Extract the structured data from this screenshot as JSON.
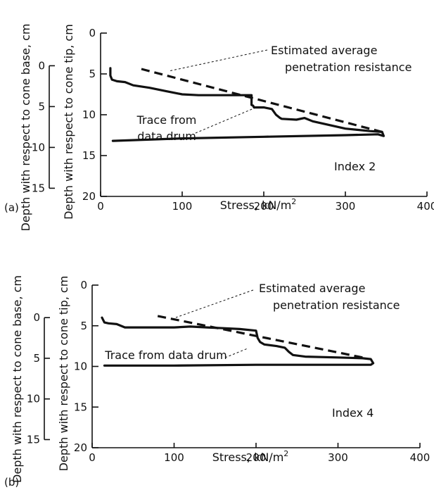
{
  "chart_data": [
    {
      "type": "line",
      "panel_label": "(a)",
      "xlabel": "Stress, kN/m",
      "xlabel_sup": "2",
      "ylabel": "Depth with respect to cone tip, cm",
      "ylabel2": "Depth with respect to cone base, cm",
      "xlim": [
        0,
        400
      ],
      "ylim": [
        0,
        20
      ],
      "x_ticks": [
        0,
        100,
        200,
        300,
        400
      ],
      "y_ticks": [
        0,
        5,
        10,
        15,
        20
      ],
      "y2_ticks": [
        0,
        5,
        10,
        15
      ],
      "y2_offset": 4,
      "index_label": "Index 2",
      "annotation_estimated": [
        "Estimated average",
        "penetration resistance"
      ],
      "annotation_trace": [
        "Trace from",
        "data drum"
      ],
      "series": [
        {
          "kind": "trace",
          "x": [
            12,
            12,
            14,
            20,
            30,
            40,
            60,
            80,
            100,
            120,
            140,
            160,
            185,
            185,
            187,
            188,
            200,
            210,
            215,
            220,
            222,
            240,
            250,
            260,
            300,
            330,
            345,
            347,
            340,
            300,
            200,
            100,
            15
          ],
          "y": [
            4.3,
            5.2,
            5.7,
            5.9,
            6.0,
            6.4,
            6.7,
            7.1,
            7.5,
            7.6,
            7.6,
            7.6,
            7.6,
            8.8,
            8.9,
            9.1,
            9.1,
            9.3,
            10.0,
            10.4,
            10.5,
            10.6,
            10.4,
            10.8,
            11.7,
            12.0,
            12.1,
            12.6,
            12.4,
            12.5,
            12.7,
            12.9,
            13.2
          ]
        },
        {
          "kind": "estimated",
          "x": [
            50,
            345
          ],
          "y": [
            4.4,
            12.1
          ]
        }
      ]
    },
    {
      "type": "line",
      "panel_label": "(b)",
      "xlabel": "Stress, kN/m",
      "xlabel_sup": "2",
      "ylabel": "Depth with respect to cone tip, cm",
      "ylabel2": "Depth with respect to cone base, cm",
      "xlim": [
        0,
        400
      ],
      "ylim": [
        0,
        20
      ],
      "x_ticks": [
        0,
        100,
        200,
        300,
        400
      ],
      "y_ticks": [
        0,
        5,
        10,
        15,
        20
      ],
      "y2_ticks": [
        0,
        5,
        10,
        15
      ],
      "y2_offset": 4,
      "index_label": "Index 4",
      "annotation_estimated": [
        "Estimated average",
        "penetration resistance"
      ],
      "annotation_trace": [
        "Trace from data drum"
      ],
      "series": [
        {
          "kind": "trace",
          "x": [
            12,
            15,
            20,
            30,
            40,
            60,
            80,
            100,
            120,
            140,
            160,
            180,
            200,
            202,
            205,
            210,
            225,
            235,
            240,
            245,
            260,
            300,
            330,
            340,
            343,
            340,
            300,
            200,
            100,
            15
          ],
          "y": [
            4.0,
            4.6,
            4.7,
            4.8,
            5.2,
            5.2,
            5.2,
            5.2,
            5.1,
            5.2,
            5.3,
            5.4,
            5.6,
            6.5,
            7.0,
            7.3,
            7.5,
            7.7,
            8.2,
            8.6,
            8.8,
            8.9,
            9.0,
            9.1,
            9.6,
            9.8,
            9.8,
            9.8,
            9.9,
            9.9
          ]
        },
        {
          "kind": "estimated",
          "x": [
            80,
            330
          ],
          "y": [
            3.8,
            8.9
          ]
        }
      ]
    }
  ]
}
